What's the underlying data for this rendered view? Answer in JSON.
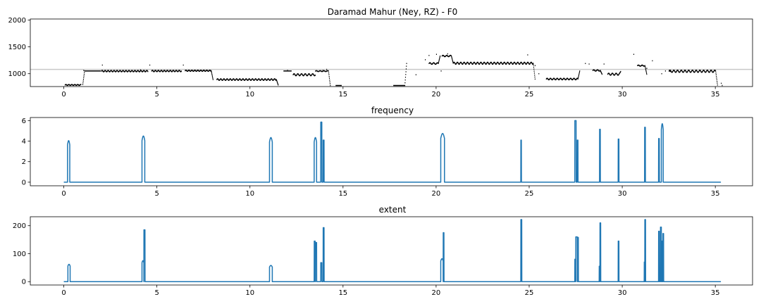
{
  "chart_data": [
    {
      "type": "scatter",
      "title": "Daramad Mahur (Ney, RZ) - F0",
      "xlim": [
        -1.8,
        37.0
      ],
      "ylim": [
        760,
        2020
      ],
      "xticks": [
        0,
        5,
        10,
        15,
        20,
        25,
        30,
        35
      ],
      "yticks": [
        1000,
        1500,
        2000
      ],
      "hline": 1080,
      "hline_color": "#c8c8c8",
      "point_color": "#000000",
      "segments": [
        {
          "t0": 0.05,
          "t1": 0.9,
          "base": 790,
          "amp": 8,
          "period": 0.16
        },
        {
          "t0": 1.1,
          "t1": 1.95,
          "base": 1050,
          "amp": 0,
          "period": 1
        },
        {
          "t0": 2.0,
          "t1": 4.5,
          "base": 1048,
          "amp": 12,
          "period": 0.16
        },
        {
          "t0": 4.7,
          "t1": 6.3,
          "base": 1050,
          "amp": 12,
          "period": 0.16
        },
        {
          "t0": 6.5,
          "t1": 7.9,
          "base": 1055,
          "amp": 10,
          "period": 0.16
        },
        {
          "t0": 8.2,
          "t1": 11.4,
          "base": 890,
          "amp": 14,
          "period": 0.17
        },
        {
          "t0": 11.8,
          "t1": 12.2,
          "base": 1050,
          "amp": 0,
          "period": 1
        },
        {
          "t0": 12.3,
          "t1": 13.5,
          "base": 980,
          "amp": 18,
          "period": 0.2
        },
        {
          "t0": 13.5,
          "t1": 14.2,
          "base": 1048,
          "amp": 8,
          "period": 0.2
        },
        {
          "t0": 14.6,
          "t1": 14.9,
          "base": 780,
          "amp": 0,
          "period": 1
        },
        {
          "t0": 17.7,
          "t1": 18.3,
          "base": 780,
          "amp": 0,
          "period": 1
        },
        {
          "t0": 19.6,
          "t1": 20.1,
          "base": 1190,
          "amp": 14,
          "period": 0.2
        },
        {
          "t0": 20.3,
          "t1": 20.8,
          "base": 1330,
          "amp": 12,
          "period": 0.2
        },
        {
          "t0": 20.9,
          "t1": 25.2,
          "base": 1195,
          "amp": 18,
          "period": 0.18
        },
        {
          "t0": 25.9,
          "t1": 27.6,
          "base": 900,
          "amp": 14,
          "period": 0.18
        },
        {
          "t0": 28.4,
          "t1": 28.8,
          "base": 1060,
          "amp": 12,
          "period": 0.2
        },
        {
          "t0": 29.2,
          "t1": 29.8,
          "base": 990,
          "amp": 18,
          "period": 0.2
        },
        {
          "t0": 30.8,
          "t1": 31.2,
          "base": 1150,
          "amp": 10,
          "period": 0.2
        },
        {
          "t0": 32.5,
          "t1": 35.0,
          "base": 1045,
          "amp": 20,
          "period": 0.2
        }
      ],
      "transitions": [
        [
          1.0,
          800,
          1050
        ],
        [
          7.9,
          1055,
          890
        ],
        [
          11.4,
          890,
          790
        ],
        [
          14.2,
          1048,
          780
        ],
        [
          18.3,
          780,
          1190
        ],
        [
          20.1,
          1190,
          1330
        ],
        [
          20.8,
          1330,
          1200
        ],
        [
          25.2,
          1195,
          900
        ],
        [
          27.6,
          900,
          1050
        ],
        [
          28.8,
          1060,
          990
        ],
        [
          29.8,
          990,
          1040
        ],
        [
          31.2,
          1150,
          990
        ],
        [
          32.5,
          1060,
          1040
        ],
        [
          35.0,
          1045,
          790
        ]
      ],
      "points": [
        [
          0.9,
          800
        ],
        [
          1.05,
          1060
        ],
        [
          2.05,
          1160
        ],
        [
          4.1,
          1070
        ],
        [
          4.6,
          1160
        ],
        [
          6.4,
          1160
        ],
        [
          12.0,
          1060
        ],
        [
          13.9,
          1060
        ],
        [
          14.1,
          1080
        ],
        [
          18.9,
          980
        ],
        [
          19.4,
          1260
        ],
        [
          19.6,
          1340
        ],
        [
          20.0,
          1360
        ],
        [
          20.25,
          1050
        ],
        [
          20.6,
          1370
        ],
        [
          24.9,
          1350
        ],
        [
          25.3,
          1150
        ],
        [
          25.5,
          1000
        ],
        [
          28.0,
          1190
        ],
        [
          28.2,
          1180
        ],
        [
          29.0,
          1180
        ],
        [
          30.6,
          1360
        ],
        [
          31.3,
          1100
        ],
        [
          31.6,
          1240
        ],
        [
          32.1,
          1000
        ],
        [
          32.3,
          1050
        ],
        [
          35.3,
          820
        ],
        [
          35.35,
          780
        ]
      ]
    },
    {
      "type": "line",
      "title": "frequency",
      "xlim": [
        -1.8,
        37.0
      ],
      "ylim": [
        -0.35,
        6.3
      ],
      "xticks": [
        0,
        5,
        10,
        15,
        20,
        25,
        30,
        35
      ],
      "yticks": [
        0,
        2,
        4,
        6
      ],
      "x_range": [
        0.0,
        35.3
      ],
      "series_color": "#1f77b4",
      "pulses": [
        [
          0.2,
          0.32,
          4.05
        ],
        [
          4.2,
          4.35,
          4.5
        ],
        [
          11.05,
          11.2,
          4.35
        ],
        [
          13.45,
          13.58,
          4.35
        ],
        [
          13.8,
          13.86,
          5.85
        ],
        [
          13.93,
          13.98,
          4.1
        ],
        [
          20.25,
          20.45,
          4.75
        ],
        [
          24.55,
          24.58,
          4.1
        ],
        [
          27.45,
          27.52,
          6.0
        ],
        [
          27.58,
          27.62,
          4.1
        ],
        [
          28.78,
          28.82,
          5.15
        ],
        [
          29.78,
          29.82,
          4.2
        ],
        [
          31.2,
          31.24,
          5.35
        ],
        [
          31.95,
          31.99,
          4.25
        ],
        [
          32.1,
          32.2,
          5.7
        ]
      ]
    },
    {
      "type": "line",
      "title": "extent",
      "xlim": [
        -1.8,
        37.0
      ],
      "ylim": [
        -12,
        232
      ],
      "xticks": [
        0,
        5,
        10,
        15,
        20,
        25,
        30,
        35
      ],
      "yticks": [
        0,
        100,
        200
      ],
      "x_range": [
        0.0,
        35.3
      ],
      "series_color": "#1f77b4",
      "pulses": [
        [
          0.22,
          0.34,
          62
        ],
        [
          4.2,
          4.3,
          75
        ],
        [
          4.3,
          4.36,
          185
        ],
        [
          11.05,
          11.2,
          58
        ],
        [
          13.45,
          13.5,
          145
        ],
        [
          13.52,
          13.58,
          140
        ],
        [
          13.8,
          13.86,
          68
        ],
        [
          13.93,
          13.98,
          193
        ],
        [
          20.25,
          20.38,
          82
        ],
        [
          20.38,
          20.42,
          175
        ],
        [
          24.55,
          24.6,
          222
        ],
        [
          27.45,
          27.5,
          80
        ],
        [
          27.5,
          27.58,
          160
        ],
        [
          27.6,
          27.64,
          158
        ],
        [
          28.76,
          28.8,
          55
        ],
        [
          28.8,
          28.84,
          210
        ],
        [
          29.78,
          29.82,
          145
        ],
        [
          31.18,
          31.21,
          70
        ],
        [
          31.21,
          31.25,
          222
        ],
        [
          31.95,
          31.99,
          180
        ],
        [
          32.05,
          32.1,
          195
        ],
        [
          32.1,
          32.14,
          145
        ],
        [
          32.18,
          32.22,
          172
        ]
      ]
    }
  ]
}
